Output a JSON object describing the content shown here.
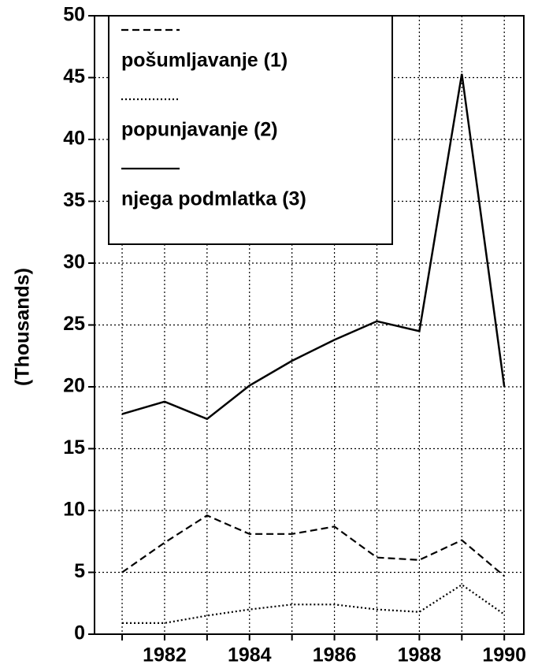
{
  "chart_data": {
    "type": "line",
    "y_label": "(Thousands)",
    "x": [
      1981,
      1982,
      1983,
      1984,
      1985,
      1986,
      1987,
      1988,
      1989,
      1990
    ],
    "series": [
      {
        "name": "pošumljavanje (1)",
        "color": "#000000",
        "dash": "dashed",
        "values": [
          5.0,
          7.4,
          9.6,
          8.1,
          8.1,
          8.7,
          6.2,
          6.0,
          7.6,
          4.7
        ]
      },
      {
        "name": "popunjavanje (2)",
        "color": "#000000",
        "dash": "dotted",
        "values": [
          0.9,
          0.9,
          1.5,
          2.0,
          2.4,
          2.4,
          2.0,
          1.8,
          4.0,
          1.6
        ]
      },
      {
        "name": "njega podmlatka (3)",
        "color": "#000000",
        "dash": "solid",
        "values": [
          17.8,
          18.8,
          17.4,
          20.1,
          22.1,
          23.8,
          25.3,
          24.5,
          45.3,
          20.0
        ]
      }
    ],
    "xlim": [
      1980.35,
      1990.46
    ],
    "ylim": [
      0,
      50
    ],
    "xticks": [
      1982,
      1984,
      1986,
      1988,
      1990
    ],
    "minor_xticks": [
      1981,
      1983,
      1985,
      1987,
      1989
    ],
    "yticks": [
      0,
      5,
      10,
      15,
      20,
      25,
      30,
      35,
      40,
      45,
      50
    ],
    "grid": true,
    "legend": "upper left"
  }
}
